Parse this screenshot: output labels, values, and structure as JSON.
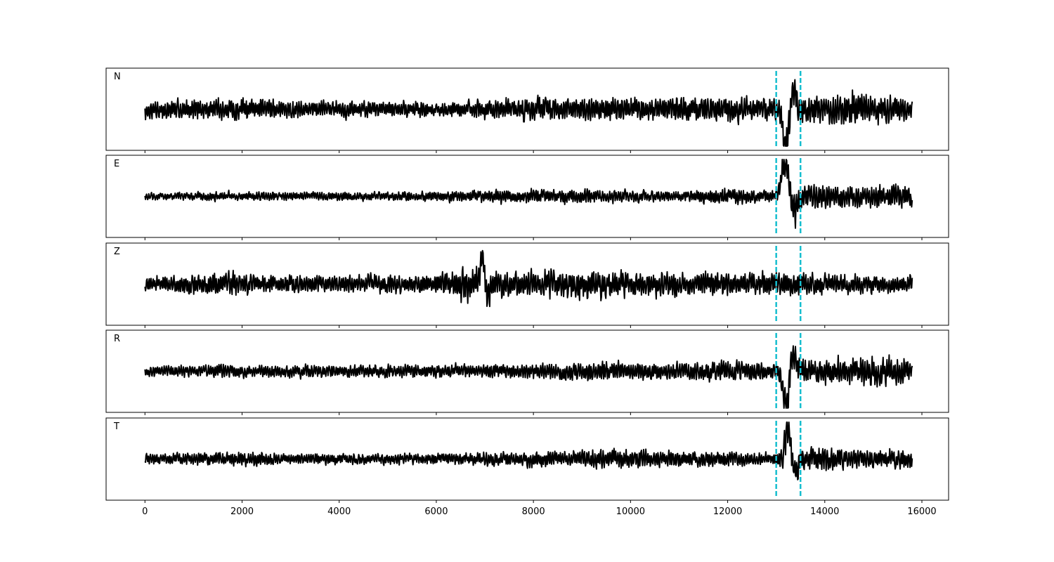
{
  "chart_data": {
    "type": "line",
    "xlim": [
      -800,
      16550
    ],
    "xticks": [
      0,
      2000,
      4000,
      6000,
      8000,
      10000,
      12000,
      14000,
      16000
    ],
    "x_start": 0,
    "x_end": 15800,
    "marker_lines": [
      13000,
      13500
    ],
    "marker_color": "#17becf",
    "trace_color": "#000000",
    "panels": [
      {
        "label": "N",
        "seed": 11,
        "envelope": [
          [
            0,
            0.45
          ],
          [
            1500,
            0.45
          ],
          [
            2000,
            0.55
          ],
          [
            3000,
            0.4
          ],
          [
            6000,
            0.35
          ],
          [
            8000,
            0.55
          ],
          [
            9500,
            0.55
          ],
          [
            12000,
            0.6
          ],
          [
            13000,
            0.5
          ],
          [
            13300,
            1.0
          ],
          [
            13600,
            0.6
          ],
          [
            14500,
            0.8
          ],
          [
            15000,
            0.75
          ],
          [
            15800,
            0.5
          ]
        ],
        "spike_x": 13200,
        "spike_amp": -0.95,
        "spike_width": 90
      },
      {
        "label": "E",
        "seed": 23,
        "envelope": [
          [
            0,
            0.15
          ],
          [
            1500,
            0.22
          ],
          [
            3000,
            0.2
          ],
          [
            6000,
            0.22
          ],
          [
            7000,
            0.3
          ],
          [
            9000,
            0.32
          ],
          [
            11000,
            0.25
          ],
          [
            12000,
            0.4
          ],
          [
            13000,
            0.3
          ],
          [
            13200,
            0.9
          ],
          [
            13500,
            0.6
          ],
          [
            14500,
            0.55
          ],
          [
            15800,
            0.55
          ]
        ],
        "spike_x": 13180,
        "spike_amp": 0.9,
        "spike_width": 110
      },
      {
        "label": "Z",
        "seed": 37,
        "envelope": [
          [
            0,
            0.35
          ],
          [
            1000,
            0.45
          ],
          [
            1800,
            0.6
          ],
          [
            2500,
            0.4
          ],
          [
            6000,
            0.45
          ],
          [
            6600,
            0.85
          ],
          [
            7200,
            0.75
          ],
          [
            8500,
            0.6
          ],
          [
            9000,
            0.75
          ],
          [
            10000,
            0.55
          ],
          [
            13000,
            0.55
          ],
          [
            13300,
            0.6
          ],
          [
            14000,
            0.45
          ],
          [
            15800,
            0.4
          ]
        ],
        "spike_x": 6950,
        "spike_amp": 0.85,
        "spike_width": 60
      },
      {
        "label": "R",
        "seed": 53,
        "envelope": [
          [
            0,
            0.25
          ],
          [
            1500,
            0.3
          ],
          [
            6000,
            0.3
          ],
          [
            8000,
            0.35
          ],
          [
            9500,
            0.45
          ],
          [
            11500,
            0.4
          ],
          [
            12000,
            0.5
          ],
          [
            13000,
            0.4
          ],
          [
            13200,
            0.9
          ],
          [
            13600,
            0.55
          ],
          [
            14500,
            0.6
          ],
          [
            15500,
            0.75
          ],
          [
            15800,
            0.5
          ]
        ],
        "spike_x": 13200,
        "spike_amp": -0.9,
        "spike_width": 90
      },
      {
        "label": "T",
        "seed": 71,
        "envelope": [
          [
            0,
            0.25
          ],
          [
            2000,
            0.35
          ],
          [
            3000,
            0.25
          ],
          [
            6000,
            0.25
          ],
          [
            8000,
            0.35
          ],
          [
            9500,
            0.45
          ],
          [
            12000,
            0.35
          ],
          [
            13000,
            0.3
          ],
          [
            13200,
            0.95
          ],
          [
            13600,
            0.6
          ],
          [
            14500,
            0.5
          ],
          [
            15800,
            0.45
          ]
        ],
        "spike_x": 13250,
        "spike_amp": 0.9,
        "spike_width": 80
      }
    ]
  }
}
